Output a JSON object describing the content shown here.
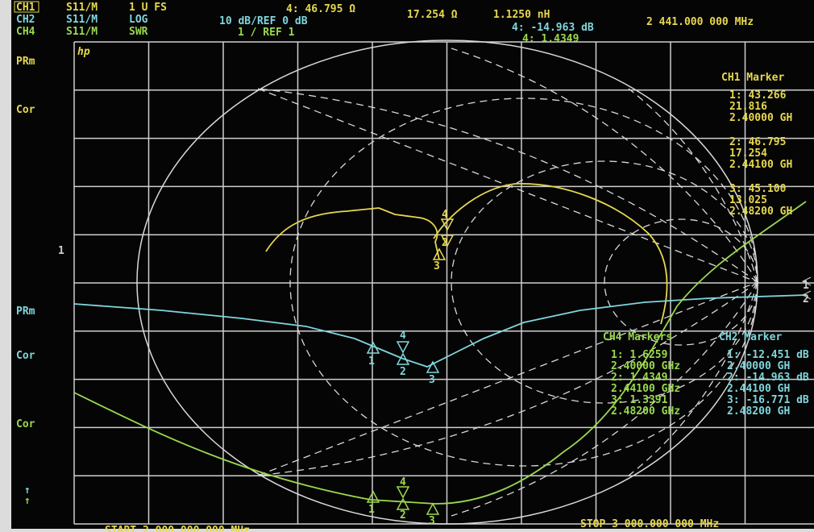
{
  "header": {
    "ch1": {
      "label": "CH1",
      "param": "S11/M",
      "format": "1 U FS"
    },
    "ch2": {
      "label": "CH2",
      "param": "S11/M",
      "format": "LOG"
    },
    "ch4": {
      "label": "CH4",
      "param": "S11/M",
      "format": "SWR"
    },
    "scale": "10 dB/REF 0 dB",
    "ref": "1 / REF 1",
    "marker_r": "4: 46.795 Ω",
    "marker_x": "17.254 Ω",
    "marker_l": "1.1250 nH",
    "marker_db": "4: -14.963 dB",
    "marker_swr": "4: 1.4349",
    "frequency": "2 441.000 000 MHz"
  },
  "logo": "hp",
  "left_labels": [
    "PRm",
    "Cor",
    "1",
    "PRm",
    "Cor",
    "Cor",
    "↑",
    "↑"
  ],
  "ch1_markers": {
    "title": "CH1 Marker",
    "entries": [
      {
        "value": "1: 43.266",
        "value2": "21.816",
        "freq": "2.40000 GH"
      },
      {
        "value": "2: 46.795",
        "value2": "17.254",
        "freq": "2.44100 GH"
      },
      {
        "value": "3: 45.100",
        "value2": "13.025",
        "freq": "2.48200 GH"
      }
    ]
  },
  "ch4_markers": {
    "title": "CH4 Markers",
    "entries": [
      {
        "value": "1: 1.6259",
        "freq": "2.40000 GHz"
      },
      {
        "value": "2: 1.4349",
        "freq": "2.44100 GHz"
      },
      {
        "value": "3: 1.3391",
        "freq": "2.48200 GHz"
      }
    ]
  },
  "ch2_markers": {
    "title": "CH2 Marker",
    "entries": [
      {
        "value": "1: -12.451 dB",
        "freq": "2.40000 GH"
      },
      {
        "value": "2: -14.963 dB",
        "freq": "2.44100 GH"
      },
      {
        "value": "3: -16.771 dB",
        "freq": "2.48200 GH"
      }
    ]
  },
  "trace_markers": {
    "ch1": [
      "4",
      "2",
      "3"
    ],
    "ch2": [
      "1",
      "4",
      "2",
      "3"
    ],
    "ch4": [
      "1",
      "4",
      "2",
      "3"
    ],
    "ref": [
      "1",
      "2"
    ]
  },
  "footer": {
    "start": "START 2 000.000 000 MHz",
    "stop": "STOP 3 000.000 000 MHz"
  }
}
